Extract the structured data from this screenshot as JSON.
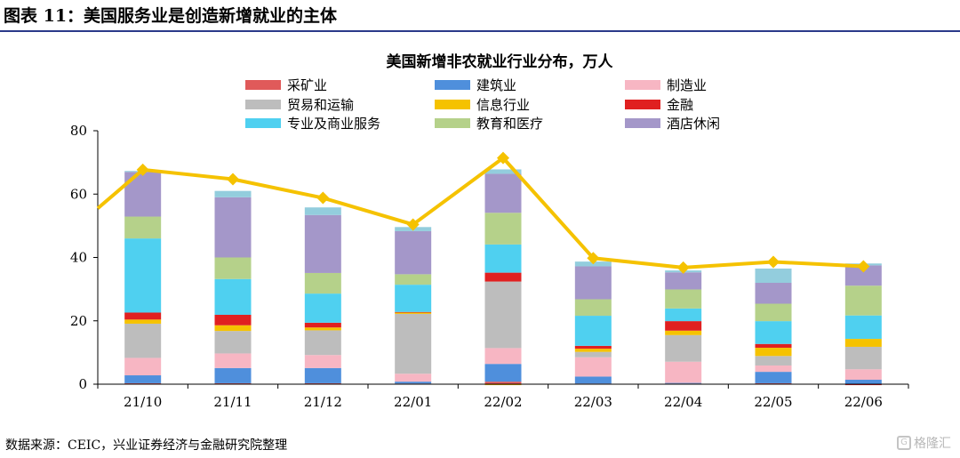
{
  "figure_title": "图表 11：美国服务业是创造新增就业的主体",
  "source_note": "数据来源：CEIC，兴业证券经济与金融研究院整理",
  "watermark_text": "格隆汇",
  "chart_data": {
    "type": "bar",
    "stacked": true,
    "title": "美国新增非农就业行业分布，万人",
    "xlabel": "",
    "ylabel": "",
    "ylim": [
      0,
      80
    ],
    "yticks": [
      0,
      20,
      40,
      60,
      80
    ],
    "grid": false,
    "legend_position": "top",
    "categories": [
      "21/10",
      "21/11",
      "21/12",
      "22/01",
      "22/02",
      "22/03",
      "22/04",
      "22/05",
      "22/06"
    ],
    "series": [
      {
        "name": "采矿业",
        "color": "#e05a5a",
        "values": [
          0.3,
          0.3,
          0.3,
          0.2,
          0.8,
          0.2,
          0.2,
          0.3,
          0.1
        ]
      },
      {
        "name": "建筑业",
        "color": "#4f8fdc",
        "values": [
          2.5,
          4.8,
          4.8,
          0.6,
          5.6,
          2.2,
          0.2,
          3.6,
          1.3
        ]
      },
      {
        "name": "制造业",
        "color": "#f7b6c3",
        "values": [
          5.5,
          4.6,
          4.1,
          2.5,
          5.0,
          6.1,
          6.7,
          2.0,
          3.3
        ]
      },
      {
        "name": "贸易和运输",
        "color": "#bdbdbd",
        "values": [
          10.8,
          7.1,
          7.8,
          18.9,
          21.0,
          1.7,
          8.4,
          3.0,
          7.1
        ]
      },
      {
        "name": "信息行业",
        "color": "#f5c200",
        "values": [
          1.3,
          1.8,
          0.9,
          0.4,
          -0.3,
          1.0,
          1.4,
          2.6,
          2.5
        ]
      },
      {
        "name": "金融",
        "color": "#e02020",
        "values": [
          2.2,
          3.3,
          1.5,
          0.2,
          2.8,
          0.9,
          3.0,
          1.2,
          -0.3
        ]
      },
      {
        "name": "专业及商业服务",
        "color": "#4fd0f0",
        "values": [
          23.4,
          11.3,
          9.2,
          8.6,
          8.9,
          9.5,
          4.0,
          7.2,
          7.4
        ]
      },
      {
        "name": "教育和医疗",
        "color": "#b5d18a",
        "values": [
          6.9,
          6.8,
          6.5,
          3.3,
          10.0,
          5.2,
          6.0,
          5.5,
          9.4
        ]
      },
      {
        "name": "酒店休闲",
        "color": "#a497c9",
        "values": [
          14.1,
          19.0,
          18.3,
          13.6,
          12.3,
          10.4,
          5.4,
          6.6,
          6.4
        ]
      },
      {
        "name": "",
        "color": "#93cddd",
        "values": [
          0.3,
          2.0,
          2.4,
          1.3,
          1.4,
          1.5,
          0.6,
          4.5,
          0.6
        ]
      }
    ],
    "total_line": {
      "name": "",
      "color": "#f5c200",
      "values": [
        67.7,
        64.7,
        58.8,
        50.4,
        71.4,
        39.8,
        36.8,
        38.6,
        37.2
      ],
      "start_value": 55.5
    }
  }
}
